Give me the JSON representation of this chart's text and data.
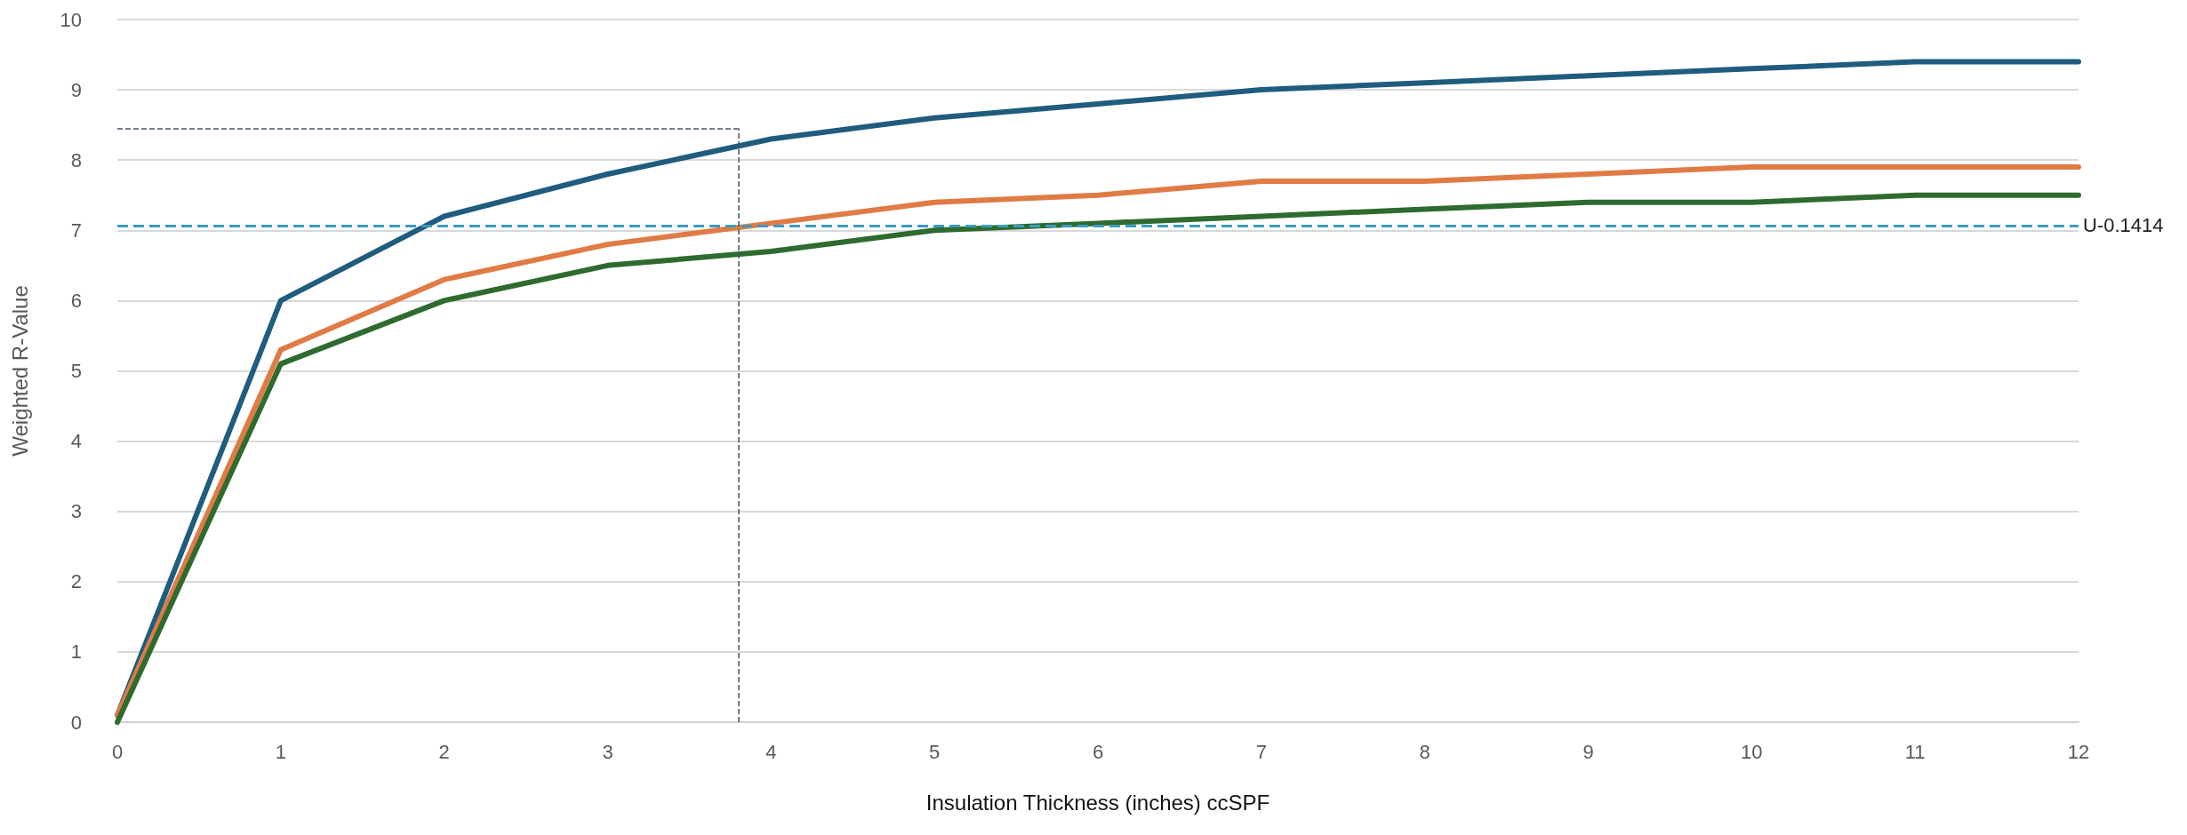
{
  "chart_data": {
    "type": "line",
    "xlabel": "Insulation Thickness (inches) ccSPF",
    "ylabel": "Weighted R-Value",
    "x": [
      0,
      1,
      2,
      3,
      4,
      5,
      6,
      7,
      8,
      9,
      10,
      11,
      12
    ],
    "series": [
      {
        "color": "#1f5c7e",
        "values": [
          0.1,
          6.0,
          7.2,
          7.8,
          8.3,
          8.6,
          8.8,
          9.0,
          9.1,
          9.2,
          9.3,
          9.4,
          9.4
        ]
      },
      {
        "color": "#e07b45",
        "values": [
          0.1,
          5.3,
          6.3,
          6.8,
          7.1,
          7.4,
          7.5,
          7.7,
          7.7,
          7.8,
          7.9,
          7.9,
          7.9
        ]
      },
      {
        "color": "#2e6b2f",
        "values": [
          0,
          5.1,
          6.0,
          6.5,
          6.7,
          7.0,
          7.1,
          7.2,
          7.3,
          7.4,
          7.4,
          7.5,
          7.5
        ]
      }
    ],
    "xlim": [
      0,
      12
    ],
    "xticks": [
      0,
      1,
      2,
      3,
      4,
      5,
      6,
      7,
      8,
      9,
      10,
      11,
      12
    ],
    "ylim": [
      0,
      10
    ],
    "yticks": [
      0,
      1,
      2,
      3,
      4,
      5,
      6,
      7,
      8,
      9,
      10
    ],
    "grid": "y",
    "marker": "none",
    "line_style": "solid",
    "ref_lines": [
      {
        "axis": "y",
        "value": 7.07,
        "label": "U-0.1414",
        "color": "#3a9cc0",
        "line_style": "dashed"
      },
      {
        "axis": "x",
        "value": 3.8,
        "color": "#44546a",
        "line_style": "dashed"
      },
      {
        "axis": "y",
        "value": 8.45,
        "color": "#44546a",
        "line_style": "dashed"
      }
    ]
  }
}
